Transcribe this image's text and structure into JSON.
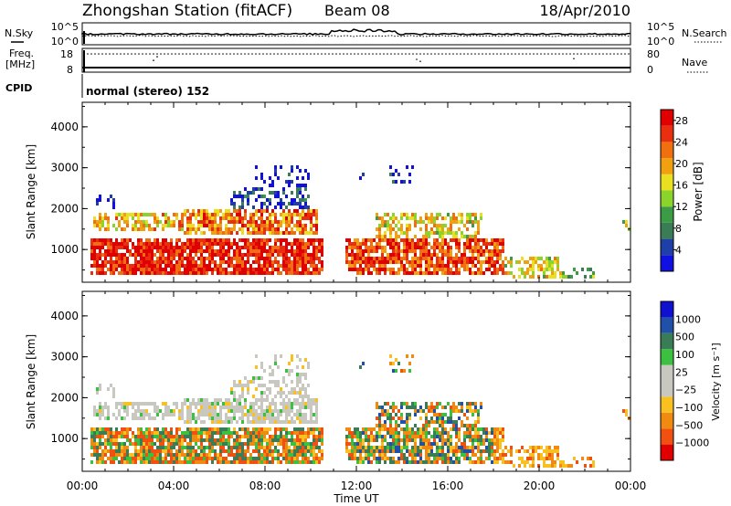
{
  "header": {
    "title": "Zhongshan Station (fitACF)",
    "beam": "Beam 08",
    "date": "18/Apr/2010"
  },
  "noise_panel": {
    "left_label": "N.Sky",
    "right_label": "N.Search",
    "left_ticks": [
      "10^5",
      "10^0"
    ],
    "right_ticks": [
      "10^5",
      "10^0"
    ]
  },
  "freq_panel": {
    "left_label_line1": "Freq.",
    "left_label_line2": "[MHz]",
    "right_label": "Nave",
    "left_ticks": [
      "18",
      "8"
    ],
    "right_ticks": [
      "80",
      "0"
    ]
  },
  "cpid_panel": {
    "label": "CPID",
    "text": "normal (stereo) 152"
  },
  "colors": {
    "power_scale": [
      "#1010e0",
      "#1e3fa8",
      "#3a7c55",
      "#3c9c46",
      "#8bd42e",
      "#e8e020",
      "#f0a010",
      "#f07010",
      "#e83010",
      "#e00000"
    ],
    "velocity_scale": [
      "#e00000",
      "#f05010",
      "#f08a10",
      "#f8c020",
      "#c8c8c0",
      "#c8c8c0",
      "#3cc040",
      "#3a7c55",
      "#2050a8",
      "#1010d0"
    ]
  },
  "chart_data": [
    {
      "type": "heatmap",
      "name_panel": "power",
      "ylabel": "Slant Range [km]",
      "yticks": [
        "1000",
        "2000",
        "3000",
        "4000"
      ],
      "ylim": [
        200,
        4600
      ],
      "colorbar_label": "Power [dB]",
      "colorbar_ticks": [
        "4",
        "8",
        "12",
        "16",
        "20",
        "24",
        "28"
      ],
      "colorbar_range": [
        0,
        30
      ]
    },
    {
      "type": "heatmap",
      "name_panel": "velocity",
      "ylabel": "Slant Range [km]",
      "yticks": [
        "1000",
        "2000",
        "3000",
        "4000"
      ],
      "ylim": [
        200,
        4600
      ],
      "colorbar_label": "Velocity [m s⁻¹]",
      "colorbar_ticks": [
        "1000",
        "500",
        "100",
        "25",
        "−25",
        "−100",
        "−500",
        "−1000"
      ]
    }
  ],
  "xaxis": {
    "label": "Time UT",
    "ticks": [
      "00:00",
      "04:00",
      "08:00",
      "12:00",
      "16:00",
      "20:00",
      "00:00"
    ]
  }
}
